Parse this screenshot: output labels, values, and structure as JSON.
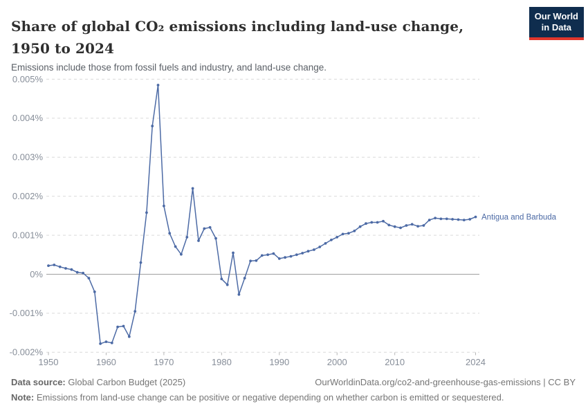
{
  "header": {
    "title": "Share of global CO₂ emissions including land-use change, 1950 to 2024",
    "subtitle": "Emissions include those from fossil fuels and industry, and land-use change.",
    "logo": {
      "line1": "Our World",
      "line2": "in Data"
    }
  },
  "chart_data": {
    "type": "line",
    "title": "Share of global CO₂ emissions including land-use change, 1950 to 2024",
    "subtitle": "Emissions include those from fossil fuels and industry, and land-use change.",
    "unit": "%",
    "grid": "horizontal-dashed",
    "legend_position": "end-of-line-label",
    "end_label": "Antigua and Barbuda",
    "xlim": [
      1950,
      2024
    ],
    "ylim": [
      -0.002,
      0.005
    ],
    "x_ticks": [
      1950,
      1960,
      1970,
      1980,
      1990,
      2000,
      2010,
      2024
    ],
    "y_ticks": [
      {
        "value": 0.005,
        "label": "0.005%"
      },
      {
        "value": 0.004,
        "label": "0.004%"
      },
      {
        "value": 0.003,
        "label": "0.003%"
      },
      {
        "value": 0.002,
        "label": "0.002%"
      },
      {
        "value": 0.001,
        "label": "0.001%"
      },
      {
        "value": 0,
        "label": "0%"
      },
      {
        "value": -0.001,
        "label": "-0.001%"
      },
      {
        "value": -0.002,
        "label": "-0.002%"
      }
    ],
    "series": [
      {
        "name": "Antigua and Barbuda",
        "color": "#4c6aa5",
        "years": [
          1950,
          1951,
          1952,
          1953,
          1954,
          1955,
          1956,
          1957,
          1958,
          1959,
          1960,
          1961,
          1962,
          1963,
          1964,
          1965,
          1966,
          1967,
          1968,
          1969,
          1970,
          1971,
          1972,
          1973,
          1974,
          1975,
          1976,
          1977,
          1978,
          1979,
          1980,
          1981,
          1982,
          1983,
          1984,
          1985,
          1986,
          1987,
          1988,
          1989,
          1990,
          1991,
          1992,
          1993,
          1994,
          1995,
          1996,
          1997,
          1998,
          1999,
          2000,
          2001,
          2002,
          2003,
          2004,
          2005,
          2006,
          2007,
          2008,
          2009,
          2010,
          2011,
          2012,
          2013,
          2014,
          2015,
          2016,
          2017,
          2018,
          2019,
          2020,
          2021,
          2022,
          2023,
          2024
        ],
        "values": [
          0.00022,
          0.00024,
          0.00019,
          0.00015,
          0.00012,
          5e-05,
          3e-05,
          -0.0001,
          -0.00045,
          -0.00178,
          -0.00173,
          -0.00176,
          -0.00135,
          -0.00133,
          -0.0016,
          -0.00095,
          0.0003,
          0.00158,
          0.0038,
          0.00485,
          0.00175,
          0.00105,
          0.00071,
          0.00051,
          0.00095,
          0.0022,
          0.00086,
          0.00117,
          0.0012,
          0.00092,
          -0.00012,
          -0.00027,
          0.00055,
          -0.00052,
          -0.0001,
          0.00034,
          0.00035,
          0.00048,
          0.0005,
          0.00053,
          0.0004,
          0.00043,
          0.00046,
          0.0005,
          0.00054,
          0.00059,
          0.00063,
          0.0007,
          0.00079,
          0.00088,
          0.00095,
          0.00103,
          0.00105,
          0.00111,
          0.00122,
          0.0013,
          0.00133,
          0.00133,
          0.00136,
          0.00126,
          0.00122,
          0.00119,
          0.00125,
          0.00128,
          0.00123,
          0.00125,
          0.00139,
          0.00144,
          0.00142,
          0.00142,
          0.00141,
          0.0014,
          0.00139,
          0.00141,
          0.00147
        ]
      }
    ],
    "colors": {
      "line": "#4c6aa5",
      "grid": "#d9d9d9",
      "zero_line": "#9e9e9e",
      "tick_text": "#878e99",
      "end_label": "#4c6aa5"
    }
  },
  "footer": {
    "source_label": "Data source:",
    "source_text": " Global Carbon Budget (2025)",
    "credit": "OurWorldinData.org/co2-and-greenhouse-gas-emissions | CC BY",
    "note_label": "Note:",
    "note_text": " Emissions from land-use change can be positive or negative depending on whether carbon is emitted or sequestered."
  }
}
